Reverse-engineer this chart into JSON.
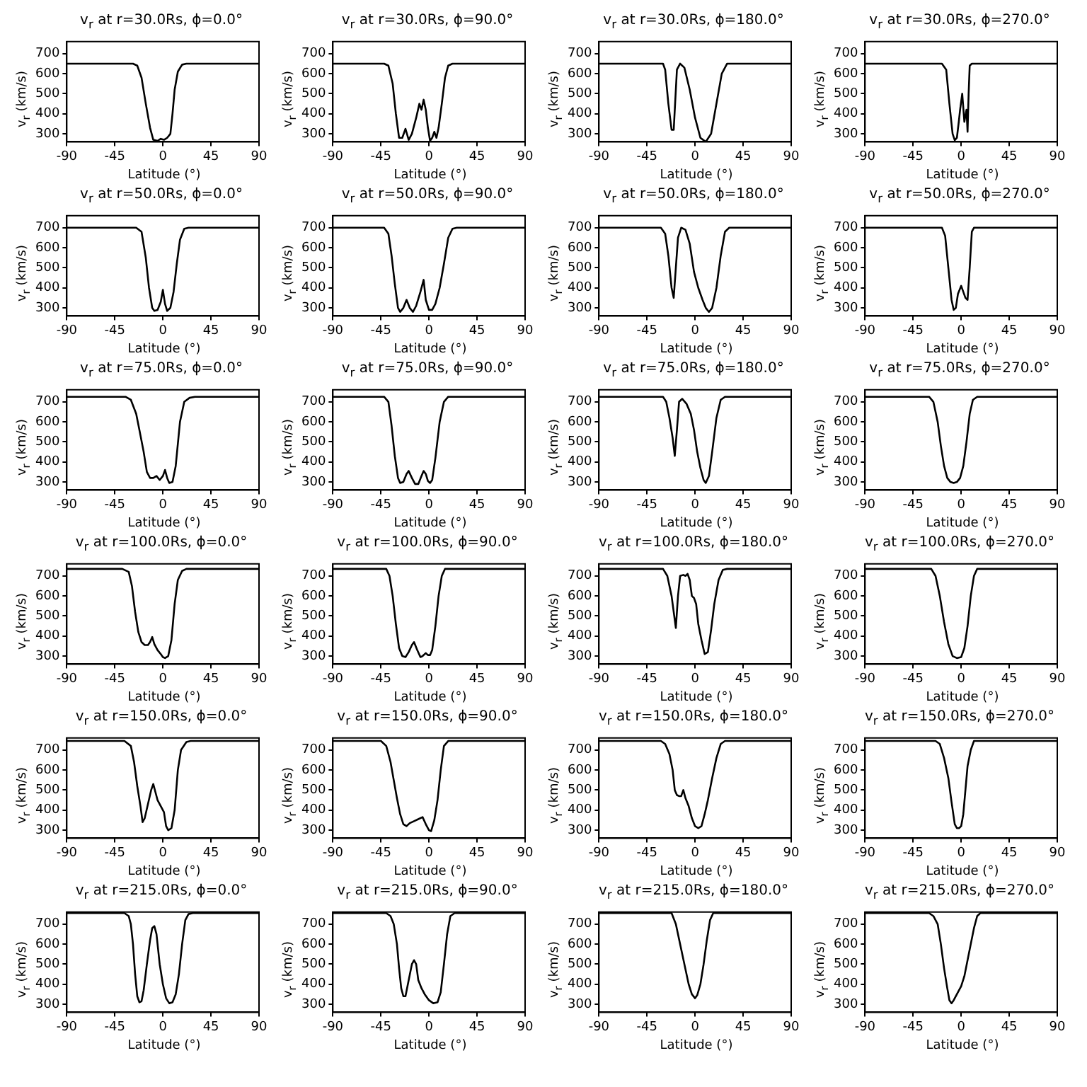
{
  "chart_data": [
    {
      "type": "line",
      "title": "v$_{r}$ at r=30.0Rs, ϕ=0.0°",
      "xlabel": "Latitude (°)",
      "ylabel": "v$_{r}$ (km/s)",
      "color": "#000000",
      "xlim": [
        -90,
        90
      ],
      "xticks": [
        -90,
        -45,
        0,
        45,
        90
      ],
      "ylim": [
        260,
        760
      ],
      "yticks": [
        300,
        400,
        500,
        600,
        700
      ],
      "x": [
        -90,
        -28,
        -24,
        -20,
        -16,
        -12,
        -9,
        -5,
        -2,
        1,
        4,
        7,
        9,
        11,
        14,
        18,
        22,
        90
      ],
      "values": [
        650,
        650,
        640,
        580,
        450,
        330,
        270,
        265,
        275,
        270,
        280,
        300,
        400,
        520,
        610,
        645,
        650,
        650
      ]
    },
    {
      "type": "line",
      "title": "v$_{r}$ at r=30.0Rs, ϕ=90.0°",
      "xlabel": "Latitude (°)",
      "ylabel": "v$_{r}$ (km/s)",
      "color": "#000000",
      "xlim": [
        -90,
        90
      ],
      "xticks": [
        -90,
        -45,
        0,
        45,
        90
      ],
      "ylim": [
        260,
        760
      ],
      "yticks": [
        300,
        400,
        500,
        600,
        700
      ],
      "x": [
        -90,
        -42,
        -38,
        -34,
        -31,
        -28,
        -25,
        -22,
        -19,
        -16,
        -12,
        -9,
        -7,
        -5,
        -3,
        -1,
        1,
        3,
        5,
        7,
        9,
        12,
        15,
        18,
        22,
        90
      ],
      "values": [
        650,
        650,
        640,
        550,
        400,
        280,
        280,
        325,
        270,
        300,
        380,
        450,
        420,
        470,
        420,
        330,
        265,
        280,
        310,
        280,
        330,
        450,
        580,
        640,
        650,
        650
      ]
    },
    {
      "type": "line",
      "title": "v$_{r}$ at r=30.0Rs, ϕ=180.0°",
      "xlabel": "Latitude (°)",
      "ylabel": "v$_{r}$ (km/s)",
      "color": "#000000",
      "xlim": [
        -90,
        90
      ],
      "xticks": [
        -90,
        -45,
        0,
        45,
        90
      ],
      "ylim": [
        260,
        760
      ],
      "yticks": [
        300,
        400,
        500,
        600,
        700
      ],
      "x": [
        -90,
        -30,
        -28,
        -25,
        -22,
        -20,
        -17,
        -14,
        -10,
        -5,
        0,
        5,
        10,
        15,
        20,
        25,
        30,
        90
      ],
      "values": [
        650,
        650,
        620,
        450,
        320,
        320,
        620,
        650,
        630,
        520,
        380,
        280,
        260,
        300,
        450,
        600,
        650,
        650
      ]
    },
    {
      "type": "line",
      "title": "v$_{r}$ at r=30.0Rs, ϕ=270.0°",
      "xlabel": "Latitude (°)",
      "ylabel": "v$_{r}$ (km/s)",
      "color": "#000000",
      "xlim": [
        -90,
        90
      ],
      "xticks": [
        -90,
        -45,
        0,
        45,
        90
      ],
      "ylim": [
        260,
        760
      ],
      "yticks": [
        300,
        400,
        500,
        600,
        700
      ],
      "x": [
        -90,
        -18,
        -14,
        -11,
        -8,
        -6,
        -4,
        -2,
        -1,
        1,
        3,
        5,
        6,
        7,
        8,
        10,
        90
      ],
      "values": [
        650,
        650,
        620,
        450,
        300,
        268,
        280,
        370,
        420,
        500,
        360,
        420,
        310,
        500,
        640,
        650,
        650
      ]
    },
    {
      "type": "line",
      "title": "v$_{r}$ at r=50.0Rs, ϕ=0.0°",
      "xlabel": "Latitude (°)",
      "ylabel": "v$_{r}$ (km/s)",
      "color": "#000000",
      "xlim": [
        -90,
        90
      ],
      "xticks": [
        -90,
        -45,
        0,
        45,
        90
      ],
      "ylim": [
        260,
        760
      ],
      "yticks": [
        300,
        400,
        500,
        600,
        700
      ],
      "x": [
        -90,
        -25,
        -20,
        -16,
        -13,
        -10,
        -8,
        -5,
        -2,
        0,
        2,
        4,
        7,
        10,
        13,
        16,
        20,
        24,
        90
      ],
      "values": [
        700,
        700,
        680,
        550,
        400,
        300,
        285,
        290,
        330,
        390,
        320,
        285,
        300,
        380,
        520,
        640,
        695,
        700,
        700
      ]
    },
    {
      "type": "line",
      "title": "v$_{r}$ at r=50.0Rs, ϕ=90.0°",
      "xlabel": "Latitude (°)",
      "ylabel": "v$_{r}$ (km/s)",
      "color": "#000000",
      "xlim": [
        -90,
        90
      ],
      "xticks": [
        -90,
        -45,
        0,
        45,
        90
      ],
      "ylim": [
        260,
        760
      ],
      "yticks": [
        300,
        400,
        500,
        600,
        700
      ],
      "x": [
        -90,
        -42,
        -38,
        -35,
        -32,
        -29,
        -27,
        -24,
        -21,
        -18,
        -15,
        -12,
        -8,
        -5,
        -3,
        0,
        3,
        6,
        10,
        14,
        18,
        22,
        26,
        90
      ],
      "values": [
        700,
        700,
        670,
        560,
        420,
        300,
        280,
        300,
        340,
        300,
        280,
        310,
        380,
        440,
        340,
        290,
        290,
        320,
        400,
        520,
        650,
        695,
        700,
        700
      ]
    },
    {
      "type": "line",
      "title": "v$_{r}$ at r=50.0Rs, ϕ=180.0°",
      "xlabel": "Latitude (°)",
      "ylabel": "v$_{r}$ (km/s)",
      "color": "#000000",
      "xlim": [
        -90,
        90
      ],
      "xticks": [
        -90,
        -45,
        0,
        45,
        90
      ],
      "ylim": [
        260,
        760
      ],
      "yticks": [
        300,
        400,
        500,
        600,
        700
      ],
      "x": [
        -90,
        -32,
        -28,
        -25,
        -22,
        -20,
        -18,
        -16,
        -13,
        -9,
        -5,
        -1,
        3,
        7,
        10,
        13,
        16,
        20,
        24,
        28,
        32,
        90
      ],
      "values": [
        700,
        700,
        670,
        560,
        400,
        350,
        500,
        650,
        700,
        690,
        620,
        480,
        400,
        340,
        300,
        280,
        300,
        400,
        560,
        680,
        700,
        700
      ]
    },
    {
      "type": "line",
      "title": "v$_{r}$ at r=50.0Rs, ϕ=270.0°",
      "xlabel": "Latitude (°)",
      "ylabel": "v$_{r}$ (km/s)",
      "color": "#000000",
      "xlim": [
        -90,
        90
      ],
      "xticks": [
        -90,
        -45,
        0,
        45,
        90
      ],
      "ylim": [
        260,
        760
      ],
      "yticks": [
        300,
        400,
        500,
        600,
        700
      ],
      "x": [
        -90,
        -18,
        -15,
        -12,
        -9,
        -7,
        -5,
        -3,
        0,
        2,
        4,
        6,
        8,
        10,
        12,
        90
      ],
      "values": [
        700,
        700,
        660,
        500,
        340,
        290,
        300,
        370,
        410,
        380,
        350,
        340,
        500,
        680,
        700,
        700
      ]
    },
    {
      "type": "line",
      "title": "v$_{r}$ at r=75.0Rs, ϕ=0.0°",
      "xlabel": "Latitude (°)",
      "ylabel": "v$_{r}$ (km/s)",
      "color": "#000000",
      "xlim": [
        -90,
        90
      ],
      "xticks": [
        -90,
        -45,
        0,
        45,
        90
      ],
      "ylim": [
        260,
        760
      ],
      "yticks": [
        300,
        400,
        500,
        600,
        700
      ],
      "x": [
        -90,
        -35,
        -30,
        -25,
        -22,
        -18,
        -15,
        -12,
        -9,
        -6,
        -3,
        0,
        2,
        4,
        6,
        9,
        12,
        16,
        20,
        25,
        30,
        90
      ],
      "values": [
        725,
        725,
        710,
        640,
        560,
        450,
        350,
        320,
        320,
        330,
        310,
        330,
        360,
        320,
        295,
        300,
        380,
        600,
        700,
        720,
        725,
        725
      ]
    },
    {
      "type": "line",
      "title": "v$_{r}$ at r=75.0Rs, ϕ=90.0°",
      "xlabel": "Latitude (°)",
      "ylabel": "v$_{r}$ (km/s)",
      "color": "#000000",
      "xlim": [
        -90,
        90
      ],
      "xticks": [
        -90,
        -45,
        0,
        45,
        90
      ],
      "ylim": [
        260,
        760
      ],
      "yticks": [
        300,
        400,
        500,
        600,
        700
      ],
      "x": [
        -90,
        -42,
        -38,
        -35,
        -32,
        -29,
        -27,
        -24,
        -21,
        -19,
        -16,
        -13,
        -10,
        -7,
        -5,
        -3,
        -1,
        1,
        3,
        6,
        10,
        14,
        18,
        90
      ],
      "values": [
        725,
        725,
        700,
        580,
        430,
        320,
        295,
        300,
        340,
        355,
        320,
        290,
        290,
        330,
        355,
        340,
        305,
        295,
        310,
        420,
        600,
        700,
        725,
        725
      ]
    },
    {
      "type": "line",
      "title": "v$_{r}$ at r=75.0Rs, ϕ=180.0°",
      "xlabel": "Latitude (°)",
      "ylabel": "v$_{r}$ (km/s)",
      "color": "#000000",
      "xlim": [
        -90,
        90
      ],
      "xticks": [
        -90,
        -45,
        0,
        45,
        90
      ],
      "ylim": [
        260,
        760
      ],
      "yticks": [
        300,
        400,
        500,
        600,
        700
      ],
      "x": [
        -90,
        -30,
        -27,
        -24,
        -21,
        -19,
        -17,
        -15,
        -12,
        -8,
        -4,
        -1,
        2,
        5,
        8,
        10,
        13,
        16,
        20,
        24,
        28,
        90
      ],
      "values": [
        725,
        725,
        700,
        620,
        520,
        430,
        560,
        700,
        715,
        690,
        640,
        560,
        450,
        370,
        310,
        295,
        330,
        450,
        620,
        710,
        725,
        725
      ]
    },
    {
      "type": "line",
      "title": "v$_{r}$ at r=75.0Rs, ϕ=270.0°",
      "xlabel": "Latitude (°)",
      "ylabel": "v$_{r}$ (km/s)",
      "color": "#000000",
      "xlim": [
        -90,
        90
      ],
      "xticks": [
        -90,
        -45,
        0,
        45,
        90
      ],
      "ylim": [
        260,
        760
      ],
      "yticks": [
        300,
        400,
        500,
        600,
        700
      ],
      "x": [
        -90,
        -30,
        -26,
        -22,
        -19,
        -16,
        -13,
        -10,
        -7,
        -4,
        -1,
        2,
        5,
        8,
        11,
        15,
        90
      ],
      "values": [
        725,
        725,
        700,
        600,
        480,
        380,
        320,
        300,
        295,
        300,
        320,
        380,
        500,
        640,
        710,
        725,
        725
      ]
    },
    {
      "type": "line",
      "title": "v$_{r}$ at r=100.0Rs, ϕ=0.0°",
      "xlabel": "Latitude (°)",
      "ylabel": "v$_{r}$ (km/s)",
      "color": "#000000",
      "xlim": [
        -90,
        90
      ],
      "xticks": [
        -90,
        -45,
        0,
        45,
        90
      ],
      "ylim": [
        260,
        760
      ],
      "yticks": [
        300,
        400,
        500,
        600,
        700
      ],
      "x": [
        -90,
        -38,
        -32,
        -29,
        -26,
        -23,
        -20,
        -17,
        -14,
        -12,
        -10,
        -8,
        -5,
        -2,
        0,
        2,
        5,
        8,
        11,
        14,
        18,
        22,
        90
      ],
      "values": [
        735,
        735,
        720,
        650,
        520,
        420,
        370,
        355,
        355,
        370,
        395,
        360,
        330,
        310,
        295,
        290,
        300,
        380,
        560,
        680,
        725,
        735,
        735
      ]
    },
    {
      "type": "line",
      "title": "v$_{r}$ at r=100.0Rs, ϕ=90.0°",
      "xlabel": "Latitude (°)",
      "ylabel": "v$_{r}$ (km/s)",
      "color": "#000000",
      "xlim": [
        -90,
        90
      ],
      "xticks": [
        -90,
        -45,
        0,
        45,
        90
      ],
      "ylim": [
        260,
        760
      ],
      "yticks": [
        300,
        400,
        500,
        600,
        700
      ],
      "x": [
        -90,
        -40,
        -37,
        -34,
        -31,
        -28,
        -25,
        -22,
        -19,
        -16,
        -14,
        -11,
        -8,
        -6,
        -3,
        -1,
        1,
        3,
        6,
        9,
        12,
        15,
        90
      ],
      "values": [
        735,
        735,
        700,
        600,
        460,
        340,
        300,
        295,
        320,
        355,
        370,
        330,
        295,
        300,
        315,
        305,
        305,
        330,
        450,
        600,
        700,
        735,
        735
      ]
    },
    {
      "type": "line",
      "title": "v$_{r}$ at r=100.0Rs, ϕ=180.0°",
      "xlabel": "Latitude (°)",
      "ylabel": "v$_{r}$ (km/s)",
      "color": "#000000",
      "xlim": [
        -90,
        90
      ],
      "xticks": [
        -90,
        -45,
        0,
        45,
        90
      ],
      "ylim": [
        260,
        760
      ],
      "yticks": [
        300,
        400,
        500,
        600,
        700
      ],
      "x": [
        -90,
        -30,
        -26,
        -22,
        -20,
        -18,
        -16,
        -14,
        -11,
        -9,
        -7,
        -5,
        -3,
        -1,
        1,
        3,
        6,
        9,
        12,
        15,
        18,
        22,
        26,
        30,
        90
      ],
      "values": [
        735,
        735,
        700,
        600,
        520,
        440,
        600,
        700,
        705,
        700,
        710,
        680,
        600,
        590,
        560,
        460,
        380,
        310,
        320,
        430,
        560,
        680,
        730,
        735,
        735
      ]
    },
    {
      "type": "line",
      "title": "v$_{r}$ at r=100.0Rs, ϕ=270.0°",
      "xlabel": "Latitude (°)",
      "ylabel": "v$_{r}$ (km/s)",
      "color": "#000000",
      "xlim": [
        -90,
        90
      ],
      "xticks": [
        -90,
        -45,
        0,
        45,
        90
      ],
      "ylim": [
        260,
        760
      ],
      "yticks": [
        300,
        400,
        500,
        600,
        700
      ],
      "x": [
        -90,
        -28,
        -24,
        -20,
        -16,
        -12,
        -8,
        -4,
        0,
        3,
        6,
        9,
        12,
        15,
        90
      ],
      "values": [
        735,
        735,
        700,
        600,
        470,
        360,
        300,
        290,
        295,
        340,
        450,
        600,
        700,
        735,
        735
      ]
    },
    {
      "type": "line",
      "title": "v$_{r}$ at r=150.0Rs, ϕ=0.0°",
      "xlabel": "Latitude (°)",
      "ylabel": "v$_{r}$ (km/s)",
      "color": "#000000",
      "xlim": [
        -90,
        90
      ],
      "xticks": [
        -90,
        -45,
        0,
        45,
        90
      ],
      "ylim": [
        260,
        760
      ],
      "yticks": [
        300,
        400,
        500,
        600,
        700
      ],
      "x": [
        -90,
        -36,
        -30,
        -27,
        -24,
        -21,
        -19,
        -17,
        -14,
        -11,
        -9,
        -7,
        -5,
        -2,
        1,
        3,
        5,
        8,
        11,
        14,
        17,
        22,
        26,
        90
      ],
      "values": [
        745,
        745,
        720,
        640,
        520,
        420,
        340,
        360,
        430,
        500,
        530,
        490,
        450,
        420,
        390,
        320,
        300,
        310,
        400,
        600,
        700,
        740,
        745,
        745
      ]
    },
    {
      "type": "line",
      "title": "v$_{r}$ at r=150.0Rs, ϕ=90.0°",
      "xlabel": "Latitude (°)",
      "ylabel": "v$_{r}$ (km/s)",
      "color": "#000000",
      "xlim": [
        -90,
        90
      ],
      "xticks": [
        -90,
        -45,
        0,
        45,
        90
      ],
      "ylim": [
        260,
        760
      ],
      "yticks": [
        300,
        400,
        500,
        600,
        700
      ],
      "x": [
        -90,
        -45,
        -40,
        -36,
        -33,
        -30,
        -27,
        -24,
        -21,
        -18,
        -14,
        -10,
        -6,
        -3,
        0,
        2,
        5,
        8,
        11,
        14,
        18,
        90
      ],
      "values": [
        745,
        745,
        720,
        640,
        550,
        460,
        380,
        330,
        320,
        335,
        345,
        355,
        365,
        330,
        300,
        295,
        350,
        450,
        600,
        720,
        745,
        745
      ]
    },
    {
      "type": "line",
      "title": "v$_{r}$ at r=150.0Rs, ϕ=180.0°",
      "xlabel": "Latitude (°)",
      "ylabel": "v$_{r}$ (km/s)",
      "color": "#000000",
      "xlim": [
        -90,
        90
      ],
      "xticks": [
        -90,
        -45,
        0,
        45,
        90
      ],
      "ylim": [
        260,
        760
      ],
      "yticks": [
        300,
        400,
        500,
        600,
        700
      ],
      "x": [
        -90,
        -32,
        -28,
        -24,
        -21,
        -19,
        -17,
        -15,
        -13,
        -11,
        -9,
        -6,
        -3,
        0,
        3,
        6,
        9,
        12,
        16,
        20,
        24,
        28,
        90
      ],
      "values": [
        745,
        745,
        730,
        680,
        600,
        500,
        475,
        470,
        470,
        500,
        460,
        420,
        360,
        320,
        310,
        320,
        380,
        450,
        560,
        660,
        730,
        745,
        745
      ]
    },
    {
      "type": "line",
      "title": "v$_{r}$ at r=150.0Rs, ϕ=270.0°",
      "xlabel": "Latitude (°)",
      "ylabel": "v$_{r}$ (km/s)",
      "color": "#000000",
      "xlim": [
        -90,
        90
      ],
      "xticks": [
        -90,
        -45,
        0,
        45,
        90
      ],
      "ylim": [
        260,
        760
      ],
      "yticks": [
        300,
        400,
        500,
        600,
        700
      ],
      "x": [
        -90,
        -24,
        -20,
        -16,
        -12,
        -9,
        -6,
        -4,
        -2,
        0,
        2,
        4,
        6,
        9,
        12,
        90
      ],
      "values": [
        745,
        745,
        730,
        660,
        560,
        440,
        330,
        310,
        310,
        320,
        380,
        500,
        620,
        700,
        745,
        745
      ]
    },
    {
      "type": "line",
      "title": "v$_{r}$ at r=215.0Rs, ϕ=0.0°",
      "xlabel": "Latitude (°)",
      "ylabel": "v$_{r}$ (km/s)",
      "color": "#000000",
      "xlim": [
        -90,
        90
      ],
      "xticks": [
        -90,
        -45,
        0,
        45,
        90
      ],
      "ylim": [
        260,
        760
      ],
      "yticks": [
        300,
        400,
        500,
        600,
        700
      ],
      "x": [
        -90,
        -36,
        -32,
        -30,
        -28,
        -26,
        -24,
        -22,
        -20,
        -18,
        -15,
        -12,
        -10,
        -8,
        -6,
        -3,
        0,
        3,
        6,
        9,
        12,
        15,
        18,
        21,
        24,
        28,
        90
      ],
      "values": [
        755,
        755,
        740,
        700,
        600,
        450,
        340,
        310,
        315,
        370,
        500,
        620,
        680,
        690,
        650,
        500,
        400,
        330,
        305,
        310,
        350,
        450,
        600,
        720,
        750,
        755,
        755
      ]
    },
    {
      "type": "line",
      "title": "v$_{r}$ at r=215.0Rs, ϕ=90.0°",
      "xlabel": "Latitude (°)",
      "ylabel": "v$_{r}$ (km/s)",
      "color": "#000000",
      "xlim": [
        -90,
        90
      ],
      "xticks": [
        -90,
        -45,
        0,
        45,
        90
      ],
      "ylim": [
        260,
        760
      ],
      "yticks": [
        300,
        400,
        500,
        600,
        700
      ],
      "x": [
        -90,
        -40,
        -36,
        -33,
        -30,
        -28,
        -26,
        -24,
        -22,
        -19,
        -16,
        -14,
        -12,
        -10,
        -7,
        -4,
        0,
        4,
        8,
        11,
        14,
        17,
        20,
        24,
        90
      ],
      "values": [
        755,
        755,
        740,
        700,
        600,
        480,
        380,
        340,
        340,
        420,
        500,
        520,
        500,
        420,
        380,
        350,
        320,
        305,
        310,
        360,
        500,
        650,
        740,
        755,
        755
      ]
    },
    {
      "type": "line",
      "title": "v$_{r}$ at r=215.0Rs, ϕ=180.0°",
      "xlabel": "Latitude (°)",
      "ylabel": "v$_{r}$ (km/s)",
      "color": "#000000",
      "xlim": [
        -90,
        90
      ],
      "xticks": [
        -90,
        -45,
        0,
        45,
        90
      ],
      "ylim": [
        260,
        760
      ],
      "yticks": [
        300,
        400,
        500,
        600,
        700
      ],
      "x": [
        -90,
        -22,
        -18,
        -14,
        -10,
        -6,
        -3,
        0,
        2,
        5,
        8,
        11,
        14,
        17,
        90
      ],
      "values": [
        755,
        755,
        700,
        600,
        500,
        400,
        350,
        330,
        345,
        400,
        500,
        620,
        720,
        755,
        755
      ]
    },
    {
      "type": "line",
      "title": "v$_{r}$ at r=215.0Rs, ϕ=270.0°",
      "xlabel": "Latitude (°)",
      "ylabel": "v$_{r}$ (km/s)",
      "color": "#000000",
      "xlim": [
        -90,
        90
      ],
      "xticks": [
        -90,
        -45,
        0,
        45,
        90
      ],
      "ylim": [
        260,
        760
      ],
      "yticks": [
        300,
        400,
        500,
        600,
        700
      ],
      "x": [
        -90,
        -30,
        -26,
        -22,
        -19,
        -16,
        -13,
        -11,
        -9,
        -7,
        -4,
        0,
        3,
        6,
        9,
        12,
        15,
        18,
        90
      ],
      "values": [
        755,
        755,
        740,
        700,
        600,
        480,
        380,
        320,
        305,
        320,
        350,
        390,
        440,
        520,
        600,
        680,
        740,
        755,
        755
      ]
    }
  ]
}
